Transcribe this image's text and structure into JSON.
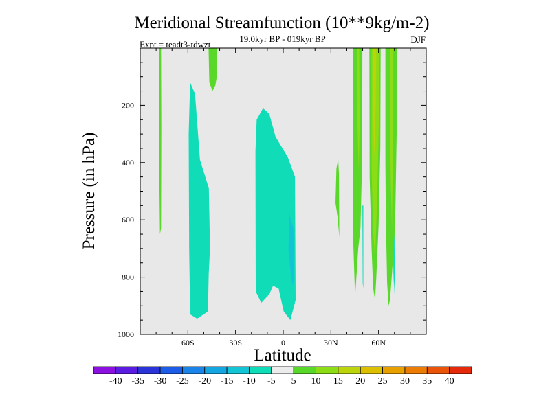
{
  "chart_data": {
    "type": "contour",
    "title": "Meridional Streamfunction (10**9kg/m-2)",
    "subtitle": "19.0kyr BP - 019kyr BP",
    "left_label": "Expt = teadt3-tdwzt",
    "right_label": "DJF",
    "xlabel": "Latitude",
    "ylabel": "Pressure (in hPa)",
    "xlim": [
      -90,
      90
    ],
    "ylim": [
      0,
      1000
    ],
    "y_inverted": true,
    "x_ticks": [
      {
        "value": -60,
        "label": "60S"
      },
      {
        "value": -30,
        "label": "30S"
      },
      {
        "value": 0,
        "label": "0"
      },
      {
        "value": 30,
        "label": "30N"
      },
      {
        "value": 60,
        "label": "60N"
      }
    ],
    "y_ticks": [
      {
        "value": 200,
        "label": "200"
      },
      {
        "value": 400,
        "label": "400"
      },
      {
        "value": 600,
        "label": "600"
      },
      {
        "value": 800,
        "label": "800"
      },
      {
        "value": 1000,
        "label": "1000"
      }
    ],
    "colorbar": {
      "levels": [
        "-40",
        "-35",
        "-30",
        "-25",
        "-20",
        "-15",
        "-10",
        "-5",
        "5",
        "10",
        "15",
        "20",
        "25",
        "30",
        "35",
        "40"
      ],
      "colors": [
        "#8c10e0",
        "#5a1ce0",
        "#2a34d8",
        "#1c5ce6",
        "#1a84e8",
        "#14a6e0",
        "#12c4d4",
        "#10dcb8",
        "#ececec",
        "#5ad82a",
        "#8cdc16",
        "#bcd40c",
        "#dcc000",
        "#e8a000",
        "#ec7c04",
        "#ea5408",
        "#e42a0a"
      ]
    },
    "regions": [
      {
        "name": "green-strip-70s",
        "color": "#5ad82a",
        "points": [
          [
            -77.9,
            0
          ],
          [
            -76.9,
            0
          ],
          [
            -76.7,
            280
          ],
          [
            -76.9,
            630
          ],
          [
            -77.6,
            650
          ],
          [
            -77.9,
            500
          ]
        ]
      },
      {
        "name": "green-blob-40s",
        "color": "#5ad82a",
        "points": [
          [
            -47,
            0
          ],
          [
            -41.5,
            0
          ],
          [
            -41.8,
            100
          ],
          [
            -42.7,
            130
          ],
          [
            -44.5,
            150
          ],
          [
            -46.5,
            120
          ]
        ]
      },
      {
        "name": "cyan-cell-55s",
        "color": "#10dcb8",
        "points": [
          [
            -58.6,
            120
          ],
          [
            -55.5,
            160
          ],
          [
            -52.4,
            390
          ],
          [
            -46.8,
            490
          ],
          [
            -46.1,
            700
          ],
          [
            -46.9,
            790
          ],
          [
            -47.4,
            920
          ],
          [
            -54.2,
            945
          ],
          [
            -58.6,
            930
          ],
          [
            -59.2,
            700
          ],
          [
            -59.5,
            300
          ]
        ]
      },
      {
        "name": "cyan-cell-eq",
        "color": "#10dcb8",
        "points": [
          [
            -16.7,
            250
          ],
          [
            -12.7,
            210
          ],
          [
            -8.8,
            230
          ],
          [
            -4.8,
            310
          ],
          [
            2.8,
            380
          ],
          [
            7.4,
            450
          ],
          [
            7.8,
            880
          ],
          [
            4.5,
            950
          ],
          [
            0.3,
            920
          ],
          [
            -2.9,
            840
          ],
          [
            -6.4,
            830
          ],
          [
            -8.8,
            860
          ],
          [
            -13.8,
            890
          ],
          [
            -17.3,
            850
          ],
          [
            -17.5,
            360
          ]
        ]
      },
      {
        "name": "blue-inner-eq",
        "color": "#12c4d4",
        "points": [
          [
            3.8,
            580
          ],
          [
            6.4,
            630
          ],
          [
            6.9,
            780
          ],
          [
            6.0,
            830
          ],
          [
            4.7,
            790
          ],
          [
            3.3,
            700
          ]
        ]
      },
      {
        "name": "green-blob-35n",
        "color": "#5ad82a",
        "points": [
          [
            33.5,
            420
          ],
          [
            34.6,
            390
          ],
          [
            35.1,
            440
          ],
          [
            35.3,
            660
          ],
          [
            34.2,
            590
          ],
          [
            32.9,
            540
          ]
        ]
      },
      {
        "name": "green-band-45n",
        "color": "#5ad82a",
        "points": [
          [
            44.1,
            0
          ],
          [
            49.8,
            0
          ],
          [
            49.7,
            380
          ],
          [
            48.6,
            630
          ],
          [
            47.2,
            700
          ],
          [
            46.3,
            780
          ],
          [
            45.2,
            870
          ],
          [
            44.1,
            680
          ]
        ]
      },
      {
        "name": "yellow-strip-47n",
        "color": "#8cdc16",
        "points": [
          [
            46.6,
            0
          ],
          [
            47.8,
            0
          ],
          [
            48.1,
            260
          ],
          [
            47.5,
            430
          ],
          [
            46.7,
            250
          ]
        ]
      },
      {
        "name": "cyan-spike-50n",
        "color": "#10dcb8",
        "points": [
          [
            49.8,
            550
          ],
          [
            50.4,
            550
          ],
          [
            50.4,
            840
          ],
          [
            50.0,
            820
          ]
        ]
      },
      {
        "name": "green-band-58n",
        "color": "#5ad82a",
        "points": [
          [
            54.2,
            0
          ],
          [
            61.3,
            0
          ],
          [
            61.1,
            350
          ],
          [
            60.0,
            620
          ],
          [
            58.6,
            800
          ],
          [
            57.8,
            880
          ],
          [
            56.6,
            840
          ],
          [
            55.6,
            700
          ],
          [
            54.4,
            450
          ]
        ]
      },
      {
        "name": "yellow-band-58n",
        "color": "#8cdc16",
        "points": [
          [
            55.5,
            0
          ],
          [
            60.3,
            0
          ],
          [
            60.2,
            260
          ],
          [
            59.2,
            520
          ],
          [
            57.8,
            740
          ],
          [
            56.6,
            640
          ],
          [
            55.6,
            420
          ]
        ]
      },
      {
        "name": "gold-core-58n",
        "color": "#bcd40c",
        "points": [
          [
            56.4,
            0
          ],
          [
            58.6,
            0
          ],
          [
            58.2,
            200
          ],
          [
            57.4,
            380
          ],
          [
            56.7,
            260
          ]
        ]
      },
      {
        "name": "green-band-68n",
        "color": "#5ad82a",
        "points": [
          [
            64.3,
            0
          ],
          [
            71.6,
            0
          ],
          [
            71.4,
            300
          ],
          [
            70.6,
            560
          ],
          [
            69.8,
            700
          ],
          [
            69.3,
            820
          ],
          [
            68.8,
            760
          ],
          [
            67.2,
            880
          ],
          [
            66.3,
            900
          ],
          [
            65.4,
            820
          ],
          [
            64.6,
            600
          ],
          [
            64.3,
            400
          ]
        ]
      },
      {
        "name": "yellow-band-68n",
        "color": "#8cdc16",
        "points": [
          [
            67.2,
            0
          ],
          [
            69.3,
            0
          ],
          [
            69.1,
            350
          ],
          [
            68.4,
            640
          ],
          [
            67.6,
            440
          ],
          [
            67.3,
            250
          ]
        ]
      },
      {
        "name": "cyan-spike-70n",
        "color": "#10dcb8",
        "points": [
          [
            69.4,
            700
          ],
          [
            70.0,
            650
          ],
          [
            70.2,
            800
          ],
          [
            69.7,
            860
          ]
        ]
      }
    ]
  }
}
